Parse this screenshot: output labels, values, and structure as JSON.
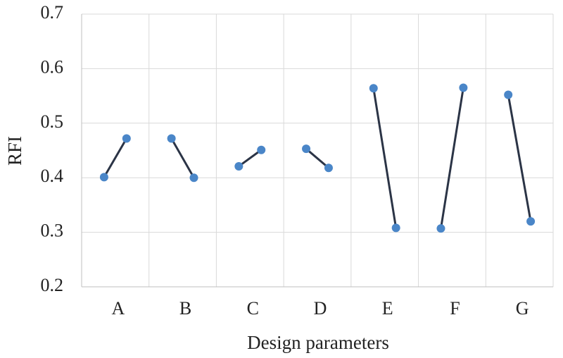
{
  "chart_data": {
    "type": "line",
    "y_label": "RFI",
    "x_label": "Design parameters",
    "categories": [
      "A",
      "B",
      "C",
      "D",
      "E",
      "F",
      "G"
    ],
    "values": [
      [
        0.401,
        0.472
      ],
      [
        0.472,
        0.4
      ],
      [
        0.421,
        0.451
      ],
      [
        0.453,
        0.418
      ],
      [
        0.564,
        0.308
      ],
      [
        0.307,
        0.565
      ],
      [
        0.552,
        0.32
      ]
    ],
    "line_color": "#2b3446",
    "marker_color": "#4a86c8",
    "ylim": [
      0.2,
      0.7
    ],
    "yticks": [
      0.2,
      0.3,
      0.4,
      0.5,
      0.6,
      0.7
    ],
    "grid": true
  }
}
